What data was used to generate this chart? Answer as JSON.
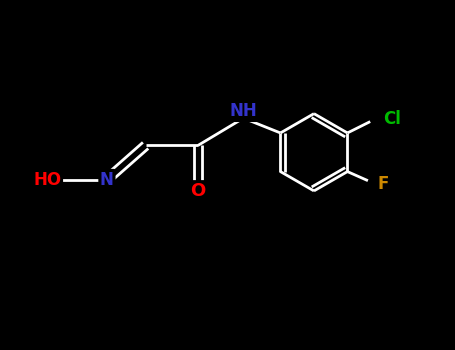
{
  "background_color": "#000000",
  "atom_colors": {
    "C": "#ffffff",
    "N": "#3333cc",
    "O": "#ff0000",
    "Cl": "#00bb00",
    "F": "#cc8800",
    "bond": "#ffffff"
  },
  "figsize": [
    4.55,
    3.5
  ],
  "dpi": 100
}
